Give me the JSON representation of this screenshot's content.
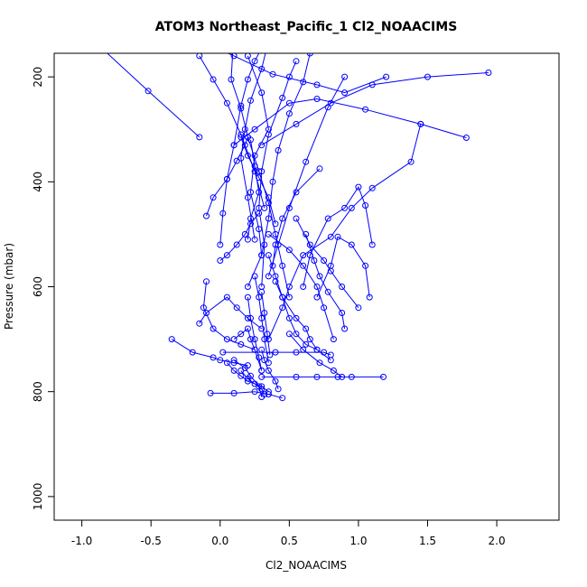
{
  "chart_data": {
    "type": "line",
    "title": "ATOM3 Northeast_Pacific_1 Cl2_NOAACIMS",
    "xlabel": "Cl2_NOAACIMS",
    "ylabel": "Pressure (mbar)",
    "xlim": [
      -1.2,
      2.45
    ],
    "ylim": [
      1045,
      155
    ],
    "y_reversed": true,
    "x_ticks": [
      -1.0,
      -0.5,
      0.0,
      0.5,
      1.0,
      1.5,
      2.0
    ],
    "x_tick_labels": [
      "-1.0",
      "-0.5",
      "0.0",
      "0.5",
      "1.0",
      "1.5",
      "2.0"
    ],
    "y_ticks": [
      200,
      400,
      600,
      800,
      1000
    ],
    "y_tick_labels": [
      "200",
      "400",
      "600",
      "800",
      "1000"
    ],
    "grid": false,
    "line_color": "#0000ff",
    "marker": "open-circle",
    "series": [
      {
        "x": [
          -1.0,
          -0.52,
          -0.15
        ],
        "y": [
          110,
          227,
          315
        ]
      },
      {
        "x": [
          -0.2,
          0.1,
          0.38,
          0.7,
          0.9,
          1.2
        ],
        "y": [
          125,
          160,
          195,
          215,
          230,
          200
        ]
      },
      {
        "x": [
          1.94,
          1.5,
          1.1,
          0.8,
          0.55,
          0.3
        ],
        "y": [
          192,
          200,
          215,
          250,
          290,
          330
        ]
      },
      {
        "x": [
          1.78,
          1.45,
          1.05,
          0.7,
          0.5,
          0.25,
          0.1
        ],
        "y": [
          316,
          290,
          262,
          242,
          250,
          300,
          330
        ]
      },
      {
        "x": [
          1.45,
          1.38,
          1.1,
          0.95,
          0.8,
          0.6,
          0.5,
          0.45,
          0.35
        ],
        "y": [
          290,
          362,
          412,
          450,
          505,
          540,
          600,
          640,
          700
        ]
      },
      {
        "x": [
          0.3,
          0.25,
          0.2,
          0.15,
          0.1,
          0.05,
          0.02,
          0.0
        ],
        "y": [
          145,
          170,
          205,
          255,
          330,
          395,
          460,
          520
        ]
      },
      {
        "x": [
          0.1,
          0.08,
          0.15,
          0.2,
          0.28,
          0.35,
          0.4,
          0.45,
          0.5
        ],
        "y": [
          110,
          205,
          260,
          315,
          380,
          440,
          500,
          560,
          620
        ]
      },
      {
        "x": [
          0.2,
          0.3,
          0.35,
          0.25,
          0.22,
          0.28,
          0.3,
          0.2
        ],
        "y": [
          160,
          230,
          300,
          350,
          420,
          490,
          540,
          600
        ]
      },
      {
        "x": [
          0.55,
          0.5,
          0.45,
          0.35,
          0.3,
          0.28,
          0.32,
          0.3
        ],
        "y": [
          170,
          200,
          240,
          310,
          380,
          450,
          520,
          600
        ]
      },
      {
        "x": [
          0.65,
          0.6,
          0.5,
          0.42,
          0.38,
          0.35,
          0.3
        ],
        "y": [
          155,
          210,
          270,
          340,
          400,
          470,
          540
        ]
      },
      {
        "x": [
          -0.15,
          -0.05,
          0.05,
          0.15,
          0.25,
          0.32
        ],
        "y": [
          160,
          205,
          250,
          310,
          380,
          450
        ]
      },
      {
        "x": [
          0.35,
          0.3,
          0.22,
          0.18,
          0.15,
          0.2,
          0.25
        ],
        "y": [
          130,
          185,
          245,
          300,
          355,
          430,
          510
        ]
      },
      {
        "x": [
          0.9,
          0.78,
          0.62,
          0.5,
          0.42,
          0.35
        ],
        "y": [
          200,
          258,
          362,
          450,
          520,
          580
        ]
      },
      {
        "x": [
          0.72,
          0.55,
          0.45,
          0.4,
          0.38
        ],
        "y": [
          375,
          420,
          470,
          520,
          560
        ]
      },
      {
        "x": [
          0.15,
          0.2,
          0.28,
          0.35,
          0.4
        ],
        "y": [
          315,
          350,
          392,
          430,
          480
        ]
      },
      {
        "x": [
          0.22,
          0.25,
          0.28,
          0.22,
          0.2
        ],
        "y": [
          320,
          370,
          420,
          470,
          510
        ]
      },
      {
        "x": [
          -0.1,
          -0.05,
          0.05,
          0.12,
          0.18,
          0.2
        ],
        "y": [
          465,
          430,
          395,
          360,
          330,
          315
        ]
      },
      {
        "x": [
          0.0,
          0.05,
          0.12,
          0.18,
          0.22,
          0.28
        ],
        "y": [
          550,
          540,
          520,
          500,
          480,
          460
        ]
      },
      {
        "x": [
          1.1,
          1.05,
          1.0,
          0.9,
          0.78,
          0.65,
          0.6
        ],
        "y": [
          520,
          445,
          410,
          450,
          470,
          540,
          600
        ]
      },
      {
        "x": [
          1.08,
          1.05,
          0.95,
          0.85,
          0.8,
          0.7
        ],
        "y": [
          620,
          560,
          520,
          505,
          560,
          620
        ]
      },
      {
        "x": [
          0.55,
          0.65,
          0.75,
          0.8,
          0.88,
          1.0
        ],
        "y": [
          470,
          520,
          550,
          570,
          600,
          640
        ]
      },
      {
        "x": [
          0.62,
          0.68,
          0.72,
          0.78,
          0.88,
          0.9
        ],
        "y": [
          500,
          550,
          580,
          610,
          650,
          680
        ]
      },
      {
        "x": [
          0.35,
          0.5,
          0.6,
          0.7,
          0.75,
          0.82
        ],
        "y": [
          500,
          530,
          560,
          600,
          640,
          700
        ]
      },
      {
        "x": [
          0.4,
          0.45,
          0.55,
          0.62,
          0.65,
          0.7,
          0.8
        ],
        "y": [
          590,
          620,
          660,
          680,
          700,
          720,
          740
        ]
      },
      {
        "x": [
          -0.1,
          -0.12,
          -0.05,
          0.05,
          0.15,
          0.25
        ],
        "y": [
          590,
          640,
          680,
          700,
          710,
          720
        ]
      },
      {
        "x": [
          -0.35,
          -0.2,
          -0.05,
          0.0,
          0.1,
          0.2
        ],
        "y": [
          700,
          725,
          735,
          740,
          745,
          750
        ]
      },
      {
        "x": [
          -0.15,
          -0.1,
          0.05,
          0.12,
          0.2,
          0.3
        ],
        "y": [
          670,
          650,
          620,
          640,
          660,
          680
        ]
      },
      {
        "x": [
          0.1,
          0.15,
          0.2,
          0.22,
          0.25,
          0.3
        ],
        "y": [
          700,
          690,
          680,
          700,
          720,
          760
        ]
      },
      {
        "x": [
          0.35,
          0.4,
          0.45,
          0.5,
          0.55,
          0.62,
          0.7
        ],
        "y": [
          540,
          580,
          620,
          660,
          690,
          710,
          720
        ]
      },
      {
        "x": [
          0.02,
          0.4,
          0.55,
          0.75,
          0.8
        ],
        "y": [
          725,
          725,
          725,
          725,
          730
        ]
      },
      {
        "x": [
          0.3,
          0.55,
          0.7,
          0.85,
          0.95,
          1.18
        ],
        "y": [
          772,
          772,
          772,
          772,
          772,
          772
        ]
      },
      {
        "x": [
          0.5,
          0.6,
          0.72,
          0.82,
          0.88
        ],
        "y": [
          690,
          720,
          745,
          760,
          772
        ]
      },
      {
        "x": [
          0.15,
          0.2,
          0.25,
          0.3,
          0.32
        ],
        "y": [
          760,
          775,
          785,
          795,
          805
        ]
      },
      {
        "x": [
          -0.07,
          0.1,
          0.25,
          0.35,
          0.45
        ],
        "y": [
          803,
          803,
          800,
          805,
          812
        ]
      },
      {
        "x": [
          0.05,
          0.1,
          0.15,
          0.2,
          0.3,
          0.35
        ],
        "y": [
          745,
          760,
          770,
          780,
          790,
          800
        ]
      },
      {
        "x": [
          0.1,
          0.18,
          0.22,
          0.28,
          0.3
        ],
        "y": [
          740,
          755,
          770,
          790,
          810
        ]
      },
      {
        "x": [
          0.3,
          0.32,
          0.35,
          0.4,
          0.42
        ],
        "y": [
          720,
          740,
          760,
          780,
          795
        ]
      },
      {
        "x": [
          0.2,
          0.22,
          0.25,
          0.28,
          0.3
        ],
        "y": [
          620,
          660,
          700,
          735,
          760
        ]
      },
      {
        "x": [
          0.25,
          0.28,
          0.3,
          0.32,
          0.35
        ],
        "y": [
          580,
          620,
          660,
          700,
          745
        ]
      },
      {
        "x": [
          0.3,
          0.32,
          0.34,
          0.36
        ],
        "y": [
          610,
          650,
          690,
          730
        ]
      }
    ]
  }
}
